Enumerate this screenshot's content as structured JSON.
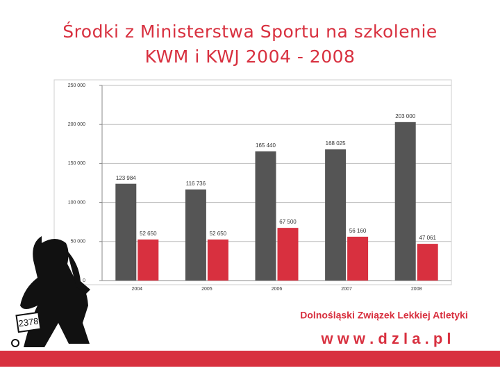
{
  "chart_data": {
    "type": "bar",
    "title": "Środki z Ministerstwa Sportu na szkolenie KWM i KWJ 2004 - 2008",
    "categories": [
      "2004",
      "2005",
      "2006",
      "2007",
      "2008"
    ],
    "series": [
      {
        "color": "#555555",
        "values": [
          123984,
          116736,
          165440,
          168025,
          203000
        ],
        "value_labels": [
          "123 984",
          "116 736",
          "165 440",
          "168 025",
          "203 000"
        ]
      },
      {
        "color": "#d8303f",
        "values": [
          52650,
          52650,
          67500,
          56160,
          47061
        ],
        "value_labels": [
          "52 650",
          "52 650",
          "67 500",
          "56 160",
          "47 061"
        ]
      }
    ],
    "ylim": [
      0,
      250000
    ],
    "yticks": [
      0,
      {
        "value": 50000,
        "label": "50 000"
      },
      {
        "value": 100000,
        "label": "100 000"
      },
      {
        "value": 150000,
        "label": "150 000"
      },
      {
        "value": 200000,
        "label": "200 000"
      },
      {
        "value": 250000,
        "label": "250 000"
      }
    ],
    "grid": true
  },
  "footer": {
    "organization": "Dolnośląski Związek Lekkiej Atletyki",
    "website": "w w w . d z l a . p l"
  },
  "image": {
    "bib_number": "2378"
  }
}
